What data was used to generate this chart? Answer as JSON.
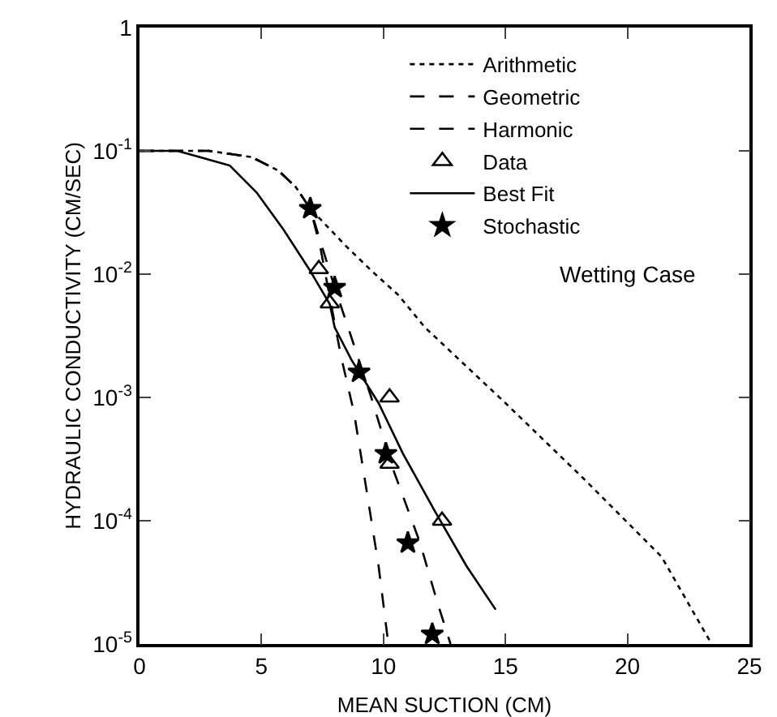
{
  "chart_data": {
    "type": "line",
    "xlabel": "MEAN SUCTION (CM)",
    "ylabel": "HYDRAULIC CONDUCTIVITY (CM/SEC)",
    "log": "y",
    "xlim": [
      0,
      25
    ],
    "xticks": [
      0,
      5,
      10,
      15,
      20,
      25
    ],
    "ylim": [
      1e-05,
      1
    ],
    "yticks": [
      {
        "value": 1e-05,
        "label": "10$^{-5}$"
      },
      {
        "value": 0.0001,
        "label": "10$^{-4}$"
      },
      {
        "value": 0.001,
        "label": "10$^{-3}$"
      },
      {
        "value": 0.01,
        "label": "10$^{-2}$"
      },
      {
        "value": 0.1,
        "label": "10$^{-1}$"
      },
      1
    ],
    "grid": false,
    "legend": "top",
    "annotations": [
      "Wetting Case"
    ],
    "series": [
      {
        "name": "Arithmetic",
        "line_style": "dotted",
        "color": "#000000",
        "x": [
          0,
          2.85,
          4.6,
          5.7,
          6.4,
          7.0,
          8.45,
          9.5,
          10.6,
          11.7,
          15.0,
          18.2,
          21.4,
          23.45
        ],
        "values": [
          0.1,
          0.1,
          0.089,
          0.069,
          0.051,
          0.034,
          0.017,
          0.0107,
          0.0068,
          0.0037,
          0.0009,
          0.00022,
          5.1e-05,
          1e-05
        ]
      },
      {
        "name": "Geometric",
        "line_style": "dashed",
        "color": "#000000",
        "x": [
          0,
          2.85,
          4.6,
          5.7,
          6.4,
          7.0,
          8.0,
          8.55,
          9.5,
          10.4,
          11.5,
          12.2,
          12.75
        ],
        "values": [
          0.1,
          0.1,
          0.089,
          0.069,
          0.051,
          0.034,
          0.0078,
          0.0037,
          0.001,
          0.00026,
          6.6e-05,
          2.2e-05,
          1e-05
        ]
      },
      {
        "name": "Harmonic",
        "line_style": "dashed",
        "color": "#000000",
        "x": [
          0,
          2.85,
          4.6,
          5.7,
          6.4,
          7.0,
          7.4,
          8.25,
          8.8,
          9.3,
          9.8,
          10.2
        ],
        "values": [
          0.1,
          0.1,
          0.089,
          0.069,
          0.051,
          0.034,
          0.017,
          0.0022,
          0.00074,
          0.00018,
          4.3e-05,
          1e-05
        ]
      },
      {
        "name": "Data",
        "type": "scatter",
        "marker": "triangle",
        "color": "#000000",
        "x": [
          7.35,
          7.8,
          10.25,
          10.25,
          12.4
        ],
        "values": [
          0.011,
          0.0058,
          0.001,
          0.00029,
          0.0001
        ]
      },
      {
        "name": "Best Fit",
        "line_style": "solid",
        "color": "#000000",
        "x": [
          0,
          1.55,
          3.7,
          4.8,
          5.9,
          6.95,
          7.8,
          8.0,
          8.7,
          9.8,
          10.8,
          12.1,
          13.4,
          14.6
        ],
        "values": [
          0.1,
          0.1,
          0.076,
          0.046,
          0.023,
          0.011,
          0.0057,
          0.0037,
          0.002,
          0.0009,
          0.00035,
          0.00012,
          4.3e-05,
          1.9e-05
        ]
      },
      {
        "name": "Stochastic",
        "type": "scatter",
        "marker": "star",
        "color": "#000000",
        "x": [
          7.0,
          8.0,
          9.0,
          10.1,
          11.0,
          12.0
        ],
        "values": [
          0.034,
          0.0078,
          0.0016,
          0.00035,
          6.6e-05,
          1.2e-05
        ]
      }
    ]
  }
}
